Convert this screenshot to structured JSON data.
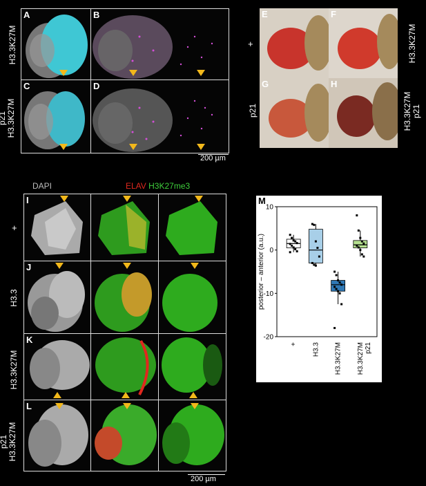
{
  "top_left": {
    "panels": [
      "A",
      "B",
      "C",
      "D"
    ],
    "row_labels": [
      "H3.3K27M",
      "p21\nH3.3K27M"
    ],
    "scale": "200 µm"
  },
  "top_right": {
    "panels": [
      "E",
      "F",
      "G",
      "H"
    ],
    "left_labels": [
      "+",
      "p21"
    ],
    "right_labels": [
      "H3.3K27M",
      "H3.3K27M\np21"
    ]
  },
  "bottom_left": {
    "col_headers": {
      "dapi": "DAPI",
      "elav": "ELAV",
      "h3": "H3K27me3"
    },
    "panels": [
      "I",
      "J",
      "K",
      "L"
    ],
    "row_labels": [
      "+",
      "H3.3",
      "H3.3K27M",
      "p21\nH3.3K27M"
    ],
    "scale": "200 µm"
  },
  "chart_data": {
    "type": "box",
    "panel_label": "M",
    "ylabel": "posterior – anterior (a.u.)",
    "ylim": [
      -20,
      10
    ],
    "yticks": [
      10,
      0,
      -10,
      -20
    ],
    "categories": [
      "+",
      "H3.3",
      "H3.3K27M",
      "H3.3K27M\np21"
    ],
    "colors": [
      "#ffffff",
      "#a8cfe8",
      "#2f78b5",
      "#b5e08f"
    ],
    "boxes": [
      {
        "q1": 0.5,
        "median": 1.5,
        "q3": 2.5,
        "whisker_low": -0.5,
        "whisker_high": 3.5,
        "points": [
          3.5,
          2.8,
          2.2,
          2.0,
          1.6,
          1.4,
          1.0,
          0.6,
          0.2,
          -0.3,
          -0.5
        ]
      },
      {
        "q1": -3.0,
        "median": 0.0,
        "q3": 4.8,
        "whisker_low": -3.5,
        "whisker_high": 6.0,
        "points": [
          6.0,
          5.8,
          2.0,
          0.5,
          -1.5,
          -3.0,
          -3.4,
          -3.6
        ]
      },
      {
        "q1": -9.5,
        "median": -8.0,
        "q3": -7.0,
        "whisker_low": -12.5,
        "whisker_high": -5.0,
        "points": [
          -5.0,
          -5.8,
          -7.0,
          -7.5,
          -8.0,
          -8.5,
          -9.0,
          -9.5,
          -10.0,
          -12.5,
          -18.0
        ]
      },
      {
        "q1": 0.5,
        "median": 1.2,
        "q3": 2.2,
        "whisker_low": -1.5,
        "whisker_high": 4.5,
        "points": [
          8.0,
          4.5,
          2.8,
          2.0,
          1.5,
          1.0,
          0.6,
          0.0,
          -1.0,
          -1.5
        ]
      }
    ]
  }
}
